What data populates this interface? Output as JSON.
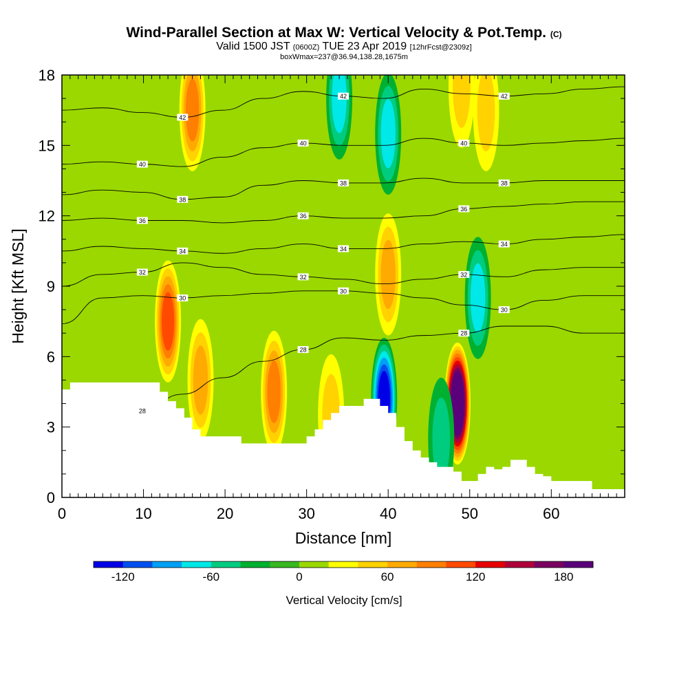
{
  "title": {
    "main": "Wind-Parallel Section at Max W: Vertical Velocity & Pot.Temp.",
    "copyright": "(C)",
    "valid_prefix": "Valid 1500 JST",
    "valid_utc": "(0600Z)",
    "valid_date": "TUE 23 Apr 2019",
    "forecast": "[12hrFcst@2309z]",
    "box": "boxWmax=237@36.94,138.28,1675m"
  },
  "colorbar": {
    "label": "Vertical Velocity [cm/s]",
    "tick_labels": [
      "-120",
      "-60",
      "0",
      "60",
      "120",
      "180"
    ],
    "colors": [
      "#0000e6",
      "#0050f0",
      "#00a0f5",
      "#00e8e8",
      "#00cc80",
      "#00b030",
      "#38b820",
      "#9ad800",
      "#ffff00",
      "#ffd200",
      "#ffaa00",
      "#ff7f00",
      "#ff4a00",
      "#e60000",
      "#b0003a",
      "#7a0060",
      "#5a007a"
    ]
  },
  "chart_data": {
    "type": "heatmap",
    "xlabel": "Distance [nm]",
    "ylabel": "Height [Kft MSL]",
    "xlim": [
      0,
      69
    ],
    "ylim": [
      0,
      18
    ],
    "x_ticks": [
      0,
      10,
      20,
      30,
      40,
      50,
      60
    ],
    "y_ticks": [
      0,
      3,
      6,
      9,
      12,
      15,
      18
    ],
    "field": "Vertical Velocity [cm/s]",
    "background_value_cm_s": 5,
    "updrafts": [
      {
        "x": 13,
        "y": 7.5,
        "w_cm_s": 100
      },
      {
        "x": 16,
        "y": 16.5,
        "w_cm_s": 85
      },
      {
        "x": 17,
        "y": 5.0,
        "w_cm_s": 75
      },
      {
        "x": 26,
        "y": 4.5,
        "w_cm_s": 90
      },
      {
        "x": 33,
        "y": 3.5,
        "w_cm_s": 55
      },
      {
        "x": 40,
        "y": 9.5,
        "w_cm_s": 70
      },
      {
        "x": 48.5,
        "y": 4.0,
        "w_cm_s": 230
      },
      {
        "x": 49,
        "y": 17.5,
        "w_cm_s": 55
      },
      {
        "x": 52,
        "y": 16.5,
        "w_cm_s": 45
      }
    ],
    "downdrafts": [
      {
        "x": 39.5,
        "y": 4.2,
        "w_cm_s": -120
      },
      {
        "x": 40,
        "y": 15.5,
        "w_cm_s": -60
      },
      {
        "x": 34,
        "y": 17.0,
        "w_cm_s": -70
      },
      {
        "x": 51,
        "y": 8.5,
        "w_cm_s": -70
      },
      {
        "x": 46.5,
        "y": 2.5,
        "w_cm_s": -50
      }
    ],
    "theta_contours": [
      {
        "value": 28,
        "label": "28",
        "y": [
          2.6,
          3.1,
          3.7,
          4.4,
          5.1,
          5.8,
          6.3,
          6.8,
          6.7,
          6.9,
          7.0,
          7.3,
          7.3,
          7.0,
          7.0
        ]
      },
      {
        "value": 30,
        "label": "30",
        "y": [
          7.4,
          8.5,
          8.6,
          8.5,
          8.6,
          8.7,
          8.8,
          8.8,
          8.7,
          8.5,
          8.2,
          8.0,
          8.4,
          8.6,
          8.6
        ]
      },
      {
        "value": 32,
        "label": "32",
        "y": [
          9.0,
          9.5,
          9.6,
          10.0,
          9.8,
          9.5,
          9.4,
          9.3,
          9.1,
          9.3,
          9.5,
          9.4,
          9.7,
          9.8,
          9.8
        ]
      },
      {
        "value": 34,
        "label": "34",
        "y": [
          10.5,
          10.7,
          10.6,
          10.5,
          10.4,
          10.6,
          10.8,
          10.6,
          10.6,
          10.8,
          10.9,
          10.8,
          11.0,
          11.1,
          11.2
        ]
      },
      {
        "value": 36,
        "label": "36",
        "y": [
          11.8,
          11.9,
          11.8,
          11.8,
          11.7,
          11.8,
          12.0,
          11.9,
          11.9,
          12.0,
          12.3,
          12.4,
          12.5,
          12.6,
          12.6
        ]
      },
      {
        "value": 38,
        "label": "38",
        "y": [
          12.9,
          13.1,
          13.0,
          12.7,
          12.8,
          13.3,
          13.5,
          13.4,
          13.4,
          13.6,
          13.4,
          13.4,
          13.5,
          13.5,
          13.5
        ]
      },
      {
        "value": 40,
        "label": "40",
        "y": [
          14.2,
          14.3,
          14.2,
          14.1,
          14.5,
          14.9,
          15.1,
          15.0,
          15.0,
          15.3,
          15.1,
          15.0,
          15.1,
          15.2,
          15.3
        ]
      },
      {
        "value": 42,
        "label": "42",
        "y": [
          16.5,
          16.6,
          16.4,
          16.2,
          16.5,
          17.0,
          17.3,
          17.1,
          17.0,
          17.4,
          17.2,
          17.1,
          17.2,
          17.4,
          17.5
        ]
      }
    ],
    "terrain": {
      "x": [
        0,
        1,
        11,
        12,
        13,
        14,
        15,
        16,
        17,
        20,
        22,
        26,
        29,
        30,
        31,
        32,
        33,
        34,
        35,
        36,
        37,
        38,
        39,
        40,
        41,
        42,
        43,
        44,
        45,
        46,
        47,
        48,
        49,
        50,
        51,
        52,
        53,
        54,
        55,
        56,
        57,
        58,
        59,
        60,
        61,
        62,
        63,
        64,
        65,
        69
      ],
      "y": [
        4.6,
        4.9,
        4.9,
        4.5,
        4.1,
        3.8,
        3.4,
        2.9,
        2.6,
        2.6,
        2.3,
        2.3,
        2.3,
        2.6,
        2.9,
        3.3,
        3.6,
        3.9,
        3.9,
        3.9,
        4.2,
        4.2,
        3.9,
        3.6,
        3.0,
        2.4,
        2.0,
        1.7,
        1.5,
        1.3,
        1.3,
        1.1,
        0.7,
        0.7,
        1.0,
        1.3,
        1.2,
        1.3,
        1.6,
        1.6,
        1.3,
        1.0,
        0.9,
        0.7,
        0.7,
        0.7,
        0.7,
        0.7,
        0.35,
        0.35
      ]
    }
  }
}
